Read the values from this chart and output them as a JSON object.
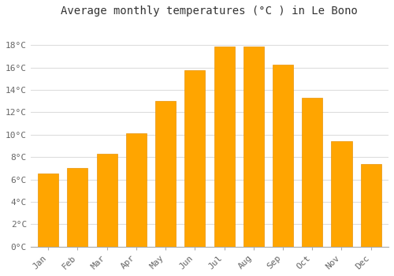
{
  "title": "Average monthly temperatures (°C ) in Le Bono",
  "months": [
    "Jan",
    "Feb",
    "Mar",
    "Apr",
    "May",
    "Jun",
    "Jul",
    "Aug",
    "Sep",
    "Oct",
    "Nov",
    "Dec"
  ],
  "temperatures": [
    6.5,
    7.0,
    8.3,
    10.1,
    13.0,
    15.8,
    17.9,
    17.9,
    16.3,
    13.3,
    9.4,
    7.4
  ],
  "ylim": [
    0,
    20
  ],
  "yticks": [
    0,
    2,
    4,
    6,
    8,
    10,
    12,
    14,
    16,
    18
  ],
  "ytick_labels": [
    "0°C",
    "2°C",
    "4°C",
    "6°C",
    "8°C",
    "10°C",
    "12°C",
    "14°C",
    "16°C",
    "18°C"
  ],
  "bar_color": "#FFA500",
  "bar_edge_color": "#E8940A",
  "plot_bg_color": "#FFFFFF",
  "fig_bg_color": "#FFFFFF",
  "grid_color": "#DDDDDD",
  "title_fontsize": 10,
  "tick_fontsize": 8,
  "title_color": "#333333",
  "tick_color": "#666666",
  "bar_width": 0.7
}
